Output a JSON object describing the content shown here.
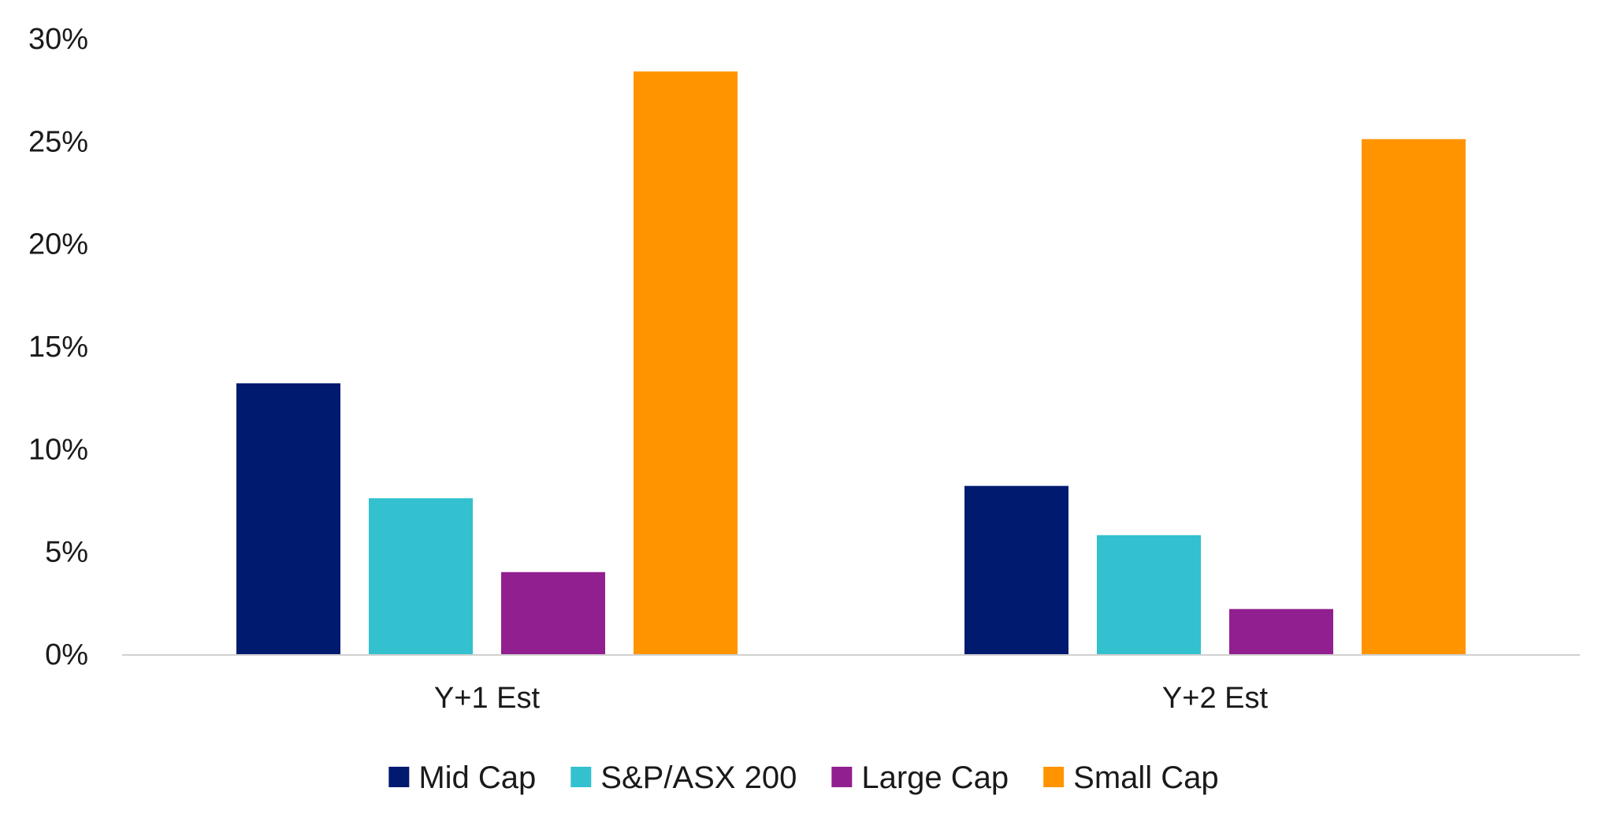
{
  "chart_data": {
    "type": "bar",
    "categories": [
      "Y+1 Est",
      "Y+2 Est"
    ],
    "series": [
      {
        "name": "Mid Cap",
        "color": "#001a70",
        "values": [
          13.2,
          8.2
        ]
      },
      {
        "name": "S&P/ASX 200",
        "color": "#33c1cf",
        "values": [
          7.6,
          5.8
        ]
      },
      {
        "name": "Large Cap",
        "color": "#921f8f",
        "values": [
          4.0,
          2.2
        ]
      },
      {
        "name": "Small Cap",
        "color": "#ff9400",
        "values": [
          28.4,
          25.1
        ]
      }
    ],
    "ylim": [
      0,
      30
    ],
    "yticks": [
      0,
      5,
      10,
      15,
      20,
      25,
      30
    ],
    "ytick_labels": [
      "0%",
      "5%",
      "10%",
      "15%",
      "20%",
      "25%",
      "30%"
    ],
    "gridlines": false,
    "legend_position": "bottom",
    "axis_color": "#d0d0d0"
  }
}
